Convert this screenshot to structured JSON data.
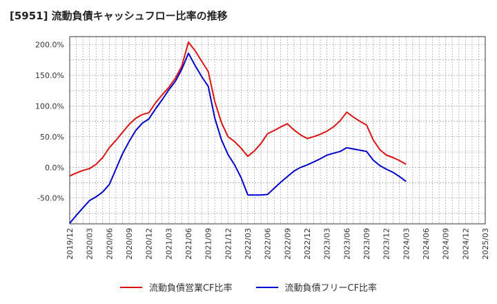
{
  "chart_data": {
    "type": "line",
    "title": "[5951]  流動負債キャッシュフロー比率の推移",
    "xlabel": "",
    "ylabel": "",
    "ylim": [
      -92,
      213
    ],
    "yticks": [
      200,
      150,
      100,
      50,
      0,
      -50
    ],
    "ytick_labels": [
      "200.0%",
      "150.0%",
      "100.0%",
      "50.0%",
      "0.0%",
      "-50.0%"
    ],
    "xticks": [
      "2019/12",
      "2020/03",
      "2020/06",
      "2020/09",
      "2020/12",
      "2021/03",
      "2021/06",
      "2021/09",
      "2021/12",
      "2022/03",
      "2022/06",
      "2022/09",
      "2022/12",
      "2023/03",
      "2023/06",
      "2023/09",
      "2023/12",
      "2024/03",
      "2024/06",
      "2024/09",
      "2024/12",
      "2025/03"
    ],
    "grid": true,
    "legend_position": "bottom",
    "series": [
      {
        "name": "流動負債営業CF比率",
        "color": "#dd1111",
        "values": [
          -14,
          -9,
          -5,
          -2,
          5,
          16,
          32,
          44,
          57,
          70,
          80,
          86,
          89,
          105,
          118,
          130,
          145,
          165,
          204,
          190,
          173,
          156,
          107,
          73,
          50,
          42,
          31,
          18,
          27,
          39,
          55,
          60,
          66,
          71,
          61,
          53,
          47,
          50,
          54,
          59,
          66,
          76,
          90,
          82,
          75,
          69,
          45,
          29,
          20,
          16,
          11,
          5
        ]
      },
      {
        "name": "流動負債フリーCF比率",
        "color": "#0000cc",
        "values": [
          -91,
          -78,
          -66,
          -54,
          -48,
          -40,
          -28,
          -3,
          22,
          42,
          60,
          72,
          79,
          95,
          110,
          126,
          140,
          160,
          186,
          166,
          148,
          132,
          80,
          45,
          21,
          4,
          -17,
          -45,
          -45,
          -45,
          -44,
          -34,
          -24,
          -15,
          -6,
          0,
          4,
          9,
          14,
          20,
          23,
          26,
          32,
          30,
          28,
          26,
          12,
          3,
          -3,
          -8,
          -15,
          -23
        ]
      }
    ]
  }
}
